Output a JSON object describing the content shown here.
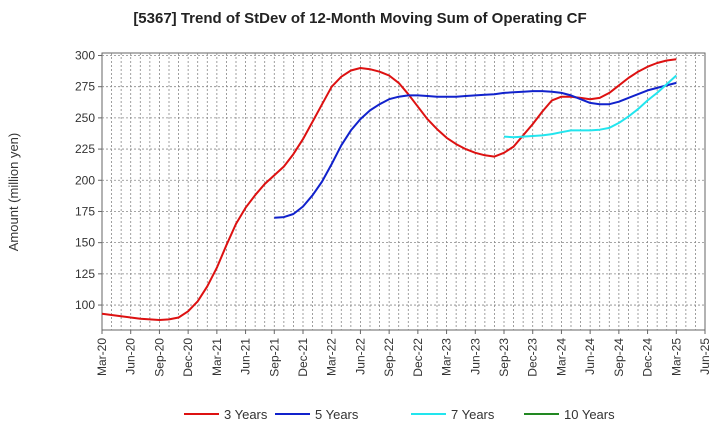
{
  "chart_data": {
    "type": "line",
    "title": "[5367]  Trend of StDev of 12-Month Moving Sum of Operating CF",
    "xlabel": "",
    "ylabel": "Amount (million yen)",
    "ylim": [
      80,
      302
    ],
    "yticks": [
      100,
      125,
      150,
      175,
      200,
      225,
      250,
      275,
      300
    ],
    "xticks": [
      "Mar-20",
      "Jun-20",
      "Sep-20",
      "Dec-20",
      "Mar-21",
      "Jun-21",
      "Sep-21",
      "Dec-21",
      "Mar-22",
      "Jun-22",
      "Sep-22",
      "Dec-22",
      "Mar-23",
      "Jun-23",
      "Sep-23",
      "Dec-23",
      "Mar-24",
      "Jun-24",
      "Sep-24",
      "Dec-24",
      "Mar-25",
      "Jun-25"
    ],
    "grid": true,
    "legend_position": "bottom",
    "series": [
      {
        "name": "3 Years",
        "color": "#dd1111",
        "x": [
          "Mar-20",
          "Apr-20",
          "May-20",
          "Jun-20",
          "Jul-20",
          "Aug-20",
          "Sep-20",
          "Oct-20",
          "Nov-20",
          "Dec-20",
          "Jan-21",
          "Feb-21",
          "Mar-21",
          "Apr-21",
          "May-21",
          "Jun-21",
          "Jul-21",
          "Aug-21",
          "Sep-21",
          "Oct-21",
          "Nov-21",
          "Dec-21",
          "Jan-22",
          "Feb-22",
          "Mar-22",
          "Apr-22",
          "May-22",
          "Jun-22",
          "Jul-22",
          "Aug-22",
          "Sep-22",
          "Oct-22",
          "Nov-22",
          "Dec-22",
          "Jan-23",
          "Feb-23",
          "Mar-23",
          "Apr-23",
          "May-23",
          "Jun-23",
          "Jul-23",
          "Aug-23",
          "Sep-23",
          "Oct-23",
          "Nov-23",
          "Dec-23",
          "Jan-24",
          "Feb-24",
          "Mar-24",
          "Apr-24",
          "May-24",
          "Jun-24",
          "Jul-24",
          "Aug-24",
          "Sep-24",
          "Oct-24",
          "Nov-24",
          "Dec-24",
          "Jan-25",
          "Feb-25",
          "Mar-25"
        ],
        "values": [
          93,
          92,
          91,
          90,
          89,
          88.5,
          88,
          88.5,
          90,
          95,
          103,
          115,
          130,
          148,
          165,
          178,
          188,
          197,
          204,
          211,
          221,
          233,
          247,
          261,
          275,
          283,
          288,
          290,
          289,
          287,
          284,
          278,
          269,
          259,
          249,
          241,
          234,
          229,
          225,
          222,
          220,
          219,
          222,
          227,
          236,
          245,
          255,
          264,
          267,
          267,
          266,
          265,
          266,
          270,
          276,
          282,
          287,
          291,
          294,
          296,
          297
        ]
      },
      {
        "name": "5 Years",
        "color": "#1122cc",
        "x": [
          "Sep-21",
          "Oct-21",
          "Nov-21",
          "Dec-21",
          "Jan-22",
          "Feb-22",
          "Mar-22",
          "Apr-22",
          "May-22",
          "Jun-22",
          "Jul-22",
          "Aug-22",
          "Sep-22",
          "Oct-22",
          "Nov-22",
          "Dec-22",
          "Jan-23",
          "Feb-23",
          "Mar-23",
          "Apr-23",
          "May-23",
          "Jun-23",
          "Jul-23",
          "Aug-23",
          "Sep-23",
          "Oct-23",
          "Nov-23",
          "Dec-23",
          "Jan-24",
          "Feb-24",
          "Mar-24",
          "Apr-24",
          "May-24",
          "Jun-24",
          "Jul-24",
          "Aug-24",
          "Sep-24",
          "Oct-24",
          "Nov-24",
          "Dec-24",
          "Jan-25",
          "Feb-25",
          "Mar-25"
        ],
        "values": [
          170,
          170.5,
          173,
          179,
          188,
          199,
          213,
          228,
          240,
          249,
          256,
          261,
          265,
          267,
          268,
          268,
          267.5,
          267,
          267,
          267,
          267.5,
          268,
          268.5,
          269,
          270,
          270.5,
          271,
          271.5,
          271.5,
          271,
          270,
          268,
          265,
          262,
          261,
          261,
          263,
          266,
          269,
          272,
          274,
          276,
          278
        ]
      },
      {
        "name": "7 Years",
        "color": "#22e5ee",
        "x": [
          "Sep-23",
          "Oct-23",
          "Nov-23",
          "Dec-23",
          "Jan-24",
          "Feb-24",
          "Mar-24",
          "Apr-24",
          "May-24",
          "Jun-24",
          "Jul-24",
          "Aug-24",
          "Sep-24",
          "Oct-24",
          "Nov-24",
          "Dec-24",
          "Jan-25",
          "Feb-25",
          "Mar-25"
        ],
        "values": [
          235,
          234.5,
          235,
          235.5,
          236,
          237,
          238.5,
          240,
          240,
          240,
          240.5,
          242,
          246,
          251,
          257,
          264,
          270,
          277,
          284
        ]
      },
      {
        "name": "10 Years",
        "color": "#228822",
        "x": [],
        "values": []
      }
    ]
  }
}
